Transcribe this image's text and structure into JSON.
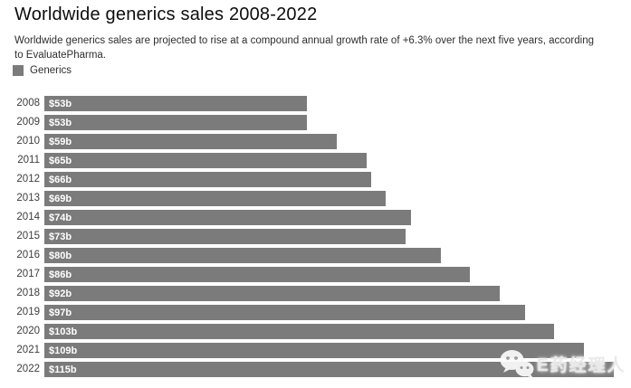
{
  "header": {
    "title": "Worldwide generics sales 2008-2022",
    "subtitle": "Worldwide generics sales are projected to rise at a compound annual growth rate of +6.3% over the next five years, according to EvaluatePharma."
  },
  "legend": {
    "label": "Generics",
    "color": "#7b7b7b"
  },
  "chart_data": {
    "type": "bar",
    "orientation": "horizontal",
    "title": "Worldwide generics sales 2008-2022",
    "subtitle": "Worldwide generics sales are projected to rise at a compound annual growth rate of +6.3% over the next five years, according to EvaluatePharma.",
    "series_name": "Generics",
    "categories": [
      "2008",
      "2009",
      "2010",
      "2011",
      "2012",
      "2013",
      "2014",
      "2015",
      "2016",
      "2017",
      "2018",
      "2019",
      "2020",
      "2021",
      "2022"
    ],
    "values": [
      53,
      53,
      59,
      65,
      66,
      69,
      74,
      73,
      80,
      86,
      92,
      97,
      103,
      109,
      115
    ],
    "value_labels": [
      "$53b",
      "$53b",
      "$59b",
      "$65b",
      "$66b",
      "$69b",
      "$74b",
      "$73b",
      "$80b",
      "$86b",
      "$92b",
      "$97b",
      "$103b",
      "$109b",
      "$115b"
    ],
    "unit": "USD billions",
    "bar_color": "#7b7b7b",
    "xlim": [
      0,
      115
    ],
    "grid": false,
    "legend_position": "top-left",
    "value_label_position": "inside-start"
  },
  "watermark": {
    "text": "E药经理人",
    "icon": "wechat-icon"
  }
}
